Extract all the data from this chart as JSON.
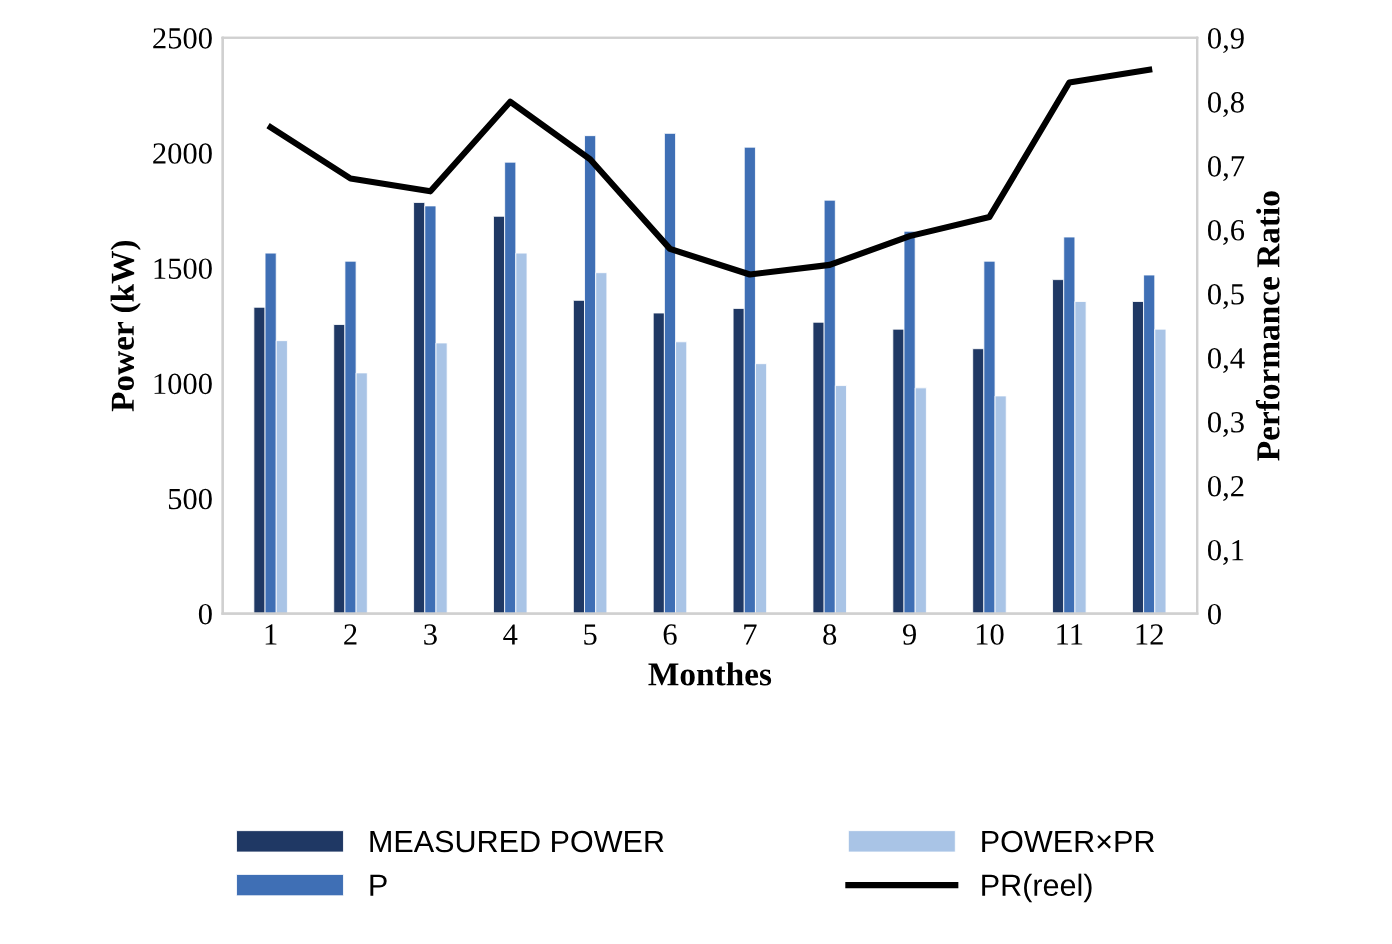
{
  "chart_data": {
    "type": "bar",
    "xlabel": "Monthes",
    "ylabel": "Power (kW)",
    "y2label": "Performance Ratio",
    "categories": [
      "1",
      "2",
      "3",
      "4",
      "5",
      "6",
      "7",
      "8",
      "9",
      "10",
      "11",
      "12"
    ],
    "series": [
      {
        "name": "MEASURED POWER",
        "color": "#1f3864",
        "values": [
          1330,
          1255,
          1785,
          1725,
          1360,
          1305,
          1325,
          1265,
          1235,
          1150,
          1450,
          1355
        ]
      },
      {
        "name": "P",
        "color": "#3f6fb5",
        "values": [
          1565,
          1530,
          1770,
          1960,
          2075,
          2085,
          2025,
          1795,
          1660,
          1530,
          1635,
          1470
        ]
      },
      {
        "name": "POWER×PR",
        "color": "#a9c4e6",
        "values": [
          1185,
          1045,
          1175,
          1565,
          1480,
          1180,
          1085,
          990,
          980,
          945,
          1355,
          1235
        ]
      },
      {
        "name": "PR(reel)",
        "type": "line",
        "axis": "y2",
        "color": "#000000",
        "values": [
          0.76,
          0.68,
          0.66,
          0.8,
          0.71,
          0.57,
          0.53,
          0.545,
          0.59,
          0.62,
          0.83,
          0.85
        ]
      }
    ],
    "ylim": [
      0,
      2500
    ],
    "yticks": [
      0,
      500,
      1000,
      1500,
      2000,
      2500
    ],
    "y2lim": [
      0,
      0.9
    ],
    "y2ticks": [
      {
        "value": 0,
        "label": "0"
      },
      {
        "value": 0.1,
        "label": "0,1"
      },
      {
        "value": 0.2,
        "label": "0,2"
      },
      {
        "value": 0.3,
        "label": "0,3"
      },
      {
        "value": 0.4,
        "label": "0,4"
      },
      {
        "value": 0.5,
        "label": "0,5"
      },
      {
        "value": 0.6,
        "label": "0,6"
      },
      {
        "value": 0.7,
        "label": "0,7"
      },
      {
        "value": 0.8,
        "label": "0,8"
      },
      {
        "value": 0.9,
        "label": "0,9"
      }
    ],
    "grid": false,
    "legend": "bottom",
    "marker": "none",
    "line_style": "solid"
  }
}
